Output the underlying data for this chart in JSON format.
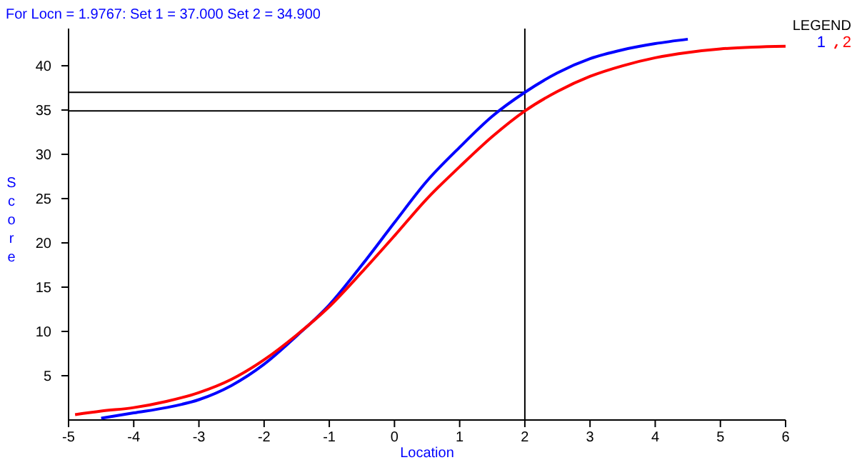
{
  "chart_data": {
    "type": "line",
    "title": "For Locn = 1.9767:  Set 1 = 37.000  Set 2 = 34.900",
    "xlabel": "Location",
    "ylabel": "Score",
    "legend_title": "LEGEND",
    "legend": "top right",
    "grid": false,
    "marker": "none",
    "line_style": "solid",
    "xlim": [
      -5,
      6
    ],
    "xticks": [
      -5,
      -4,
      -3,
      -2,
      -1,
      0,
      1,
      2,
      3,
      4,
      5,
      6
    ],
    "ylim": [
      0,
      44.2
    ],
    "yticks": [
      5,
      10,
      15,
      20,
      25,
      30,
      35,
      40
    ],
    "series": [
      {
        "name": "1",
        "color": "#0000ff",
        "x": [
          -4.5,
          -4,
          -3.5,
          -3,
          -2.5,
          -2,
          -1.5,
          -1,
          -0.5,
          0,
          0.5,
          1,
          1.5,
          2,
          2.5,
          3,
          3.5,
          4,
          4.5
        ],
        "values": [
          0.2,
          0.8,
          1.4,
          2.3,
          3.9,
          6.3,
          9.5,
          13,
          17.5,
          22.3,
          27,
          30.8,
          34.3,
          37,
          39.2,
          40.8,
          41.8,
          42.5,
          43
        ]
      },
      {
        "name": "2",
        "color": "#ff0000",
        "x": [
          -4.9,
          -4.5,
          -4,
          -3.5,
          -3,
          -2.5,
          -2,
          -1.5,
          -1,
          -0.5,
          0,
          0.5,
          1,
          1.5,
          2,
          2.5,
          3,
          3.5,
          4,
          4.5,
          5,
          5.5,
          6
        ],
        "values": [
          0.6,
          1,
          1.4,
          2.1,
          3.1,
          4.6,
          6.8,
          9.6,
          12.8,
          16.7,
          20.8,
          25,
          28.6,
          32,
          34.9,
          37.1,
          38.8,
          40,
          40.9,
          41.5,
          41.9,
          42.1,
          42.2
        ]
      }
    ],
    "ref_lines": [
      {
        "axis": "x",
        "value": 2,
        "color": "#000000"
      },
      {
        "axis": "y",
        "value": 37,
        "color": "#000000"
      },
      {
        "axis": "y",
        "value": 34.9,
        "color": "#000000"
      }
    ]
  }
}
